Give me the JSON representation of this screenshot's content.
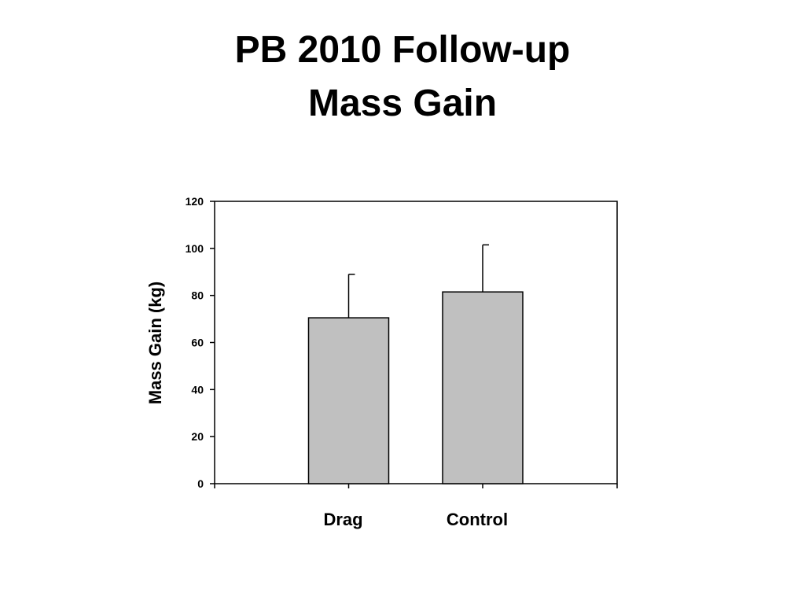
{
  "slide": {
    "title_line_1": "PB 2010 Follow-up",
    "title_line_2": "Mass Gain"
  },
  "chart_data": {
    "type": "bar",
    "title": "",
    "xlabel": "",
    "ylabel": "Mass Gain (kg)",
    "categories": [
      "Drag",
      "Control"
    ],
    "values": [
      70.5,
      81.5
    ],
    "error_bars": [
      18.5,
      20
    ],
    "ylim": [
      0,
      120
    ],
    "y_ticks": [
      0,
      20,
      40,
      60,
      80,
      100,
      120
    ],
    "grid": false,
    "legend": "none",
    "bar_color": "#c0c0c0",
    "bar_edge_color": "#000000"
  }
}
